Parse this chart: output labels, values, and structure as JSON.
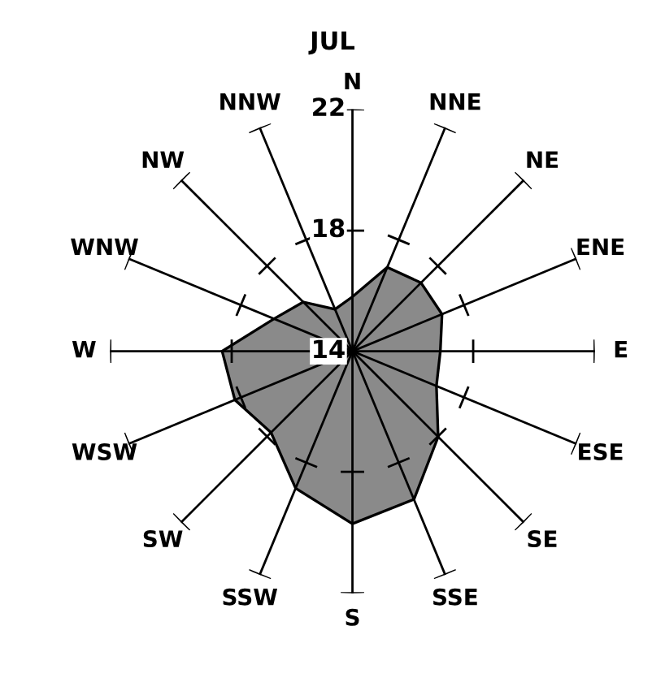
{
  "chart_data": {
    "type": "radar",
    "title": "JUL",
    "categories": [
      "N",
      "NNE",
      "NE",
      "ENE",
      "E",
      "ESE",
      "SE",
      "SSE",
      "S",
      "SSW",
      "SW",
      "WSW",
      "W",
      "WNW",
      "NW",
      "NNW"
    ],
    "series": [
      {
        "color": "#8a8a8a",
        "values": [
          15.8,
          17.0,
          17.2,
          17.2,
          16.9,
          17.0,
          18.0,
          19.3,
          19.7,
          18.9,
          17.8,
          18.2,
          18.3,
          16.8,
          16.3,
          15.5
        ]
      }
    ],
    "ylim": [
      14,
      22
    ],
    "yticks": [
      14,
      18,
      22
    ],
    "grid": false
  }
}
